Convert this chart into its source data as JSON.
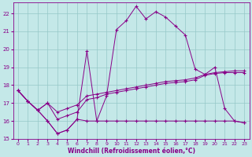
{
  "xlabel": "Windchill (Refroidissement éolien,°C)",
  "ylabel": "",
  "bg_color": "#c4e8e8",
  "grid_color": "#96c8c8",
  "line_color": "#880088",
  "xlim": [
    -0.5,
    23.5
  ],
  "ylim": [
    15,
    22.6
  ],
  "xticks": [
    0,
    1,
    2,
    3,
    4,
    5,
    6,
    7,
    8,
    9,
    10,
    11,
    12,
    13,
    14,
    15,
    16,
    17,
    18,
    19,
    20,
    21,
    22,
    23
  ],
  "yticks": [
    15,
    16,
    17,
    18,
    19,
    20,
    21,
    22
  ],
  "line1_y": [
    17.7,
    17.1,
    16.6,
    16.0,
    15.3,
    15.5,
    16.1,
    19.9,
    16.0,
    17.4,
    21.1,
    21.6,
    22.4,
    21.7,
    22.1,
    21.8,
    21.3,
    20.8,
    18.9,
    18.6,
    19.0,
    16.7,
    16.0,
    15.9
  ],
  "line2_y": [
    17.7,
    17.1,
    16.6,
    16.0,
    15.3,
    15.5,
    16.1,
    16.0,
    16.0,
    16.0,
    16.0,
    16.0,
    16.0,
    16.0,
    16.0,
    16.0,
    16.0,
    16.0,
    16.0,
    16.0,
    16.0,
    16.0,
    16.0,
    15.9
  ],
  "line3_y": [
    17.7,
    17.1,
    16.6,
    17.0,
    16.1,
    16.3,
    16.5,
    17.2,
    17.3,
    17.5,
    17.6,
    17.7,
    17.8,
    17.9,
    18.0,
    18.1,
    18.15,
    18.2,
    18.3,
    18.55,
    18.65,
    18.7,
    18.7,
    18.7
  ],
  "line4_y": [
    17.7,
    17.1,
    16.6,
    17.0,
    16.5,
    16.7,
    16.9,
    17.4,
    17.5,
    17.6,
    17.7,
    17.8,
    17.9,
    18.0,
    18.1,
    18.2,
    18.25,
    18.3,
    18.4,
    18.6,
    18.7,
    18.75,
    18.8,
    18.8
  ]
}
